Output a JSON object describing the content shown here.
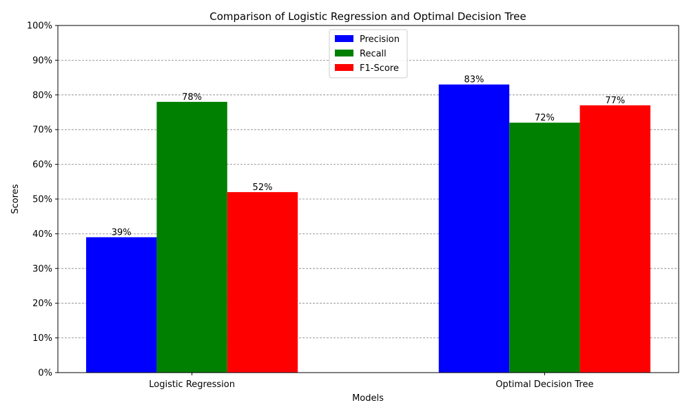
{
  "chart_data": {
    "type": "bar",
    "title": "Comparison of Logistic Regression and Optimal Decision Tree",
    "xlabel": "Models",
    "ylabel": "Scores",
    "categories": [
      "Logistic Regression",
      "Optimal Decision Tree"
    ],
    "series": [
      {
        "name": "Precision",
        "values": [
          0.39,
          0.83
        ],
        "color": "#0000ff"
      },
      {
        "name": "Recall",
        "values": [
          0.78,
          0.72
        ],
        "color": "#008000"
      },
      {
        "name": "F1-Score",
        "values": [
          0.52,
          0.77
        ],
        "color": "#ff0000"
      }
    ],
    "data_labels": [
      [
        "39%",
        "83%"
      ],
      [
        "78%",
        "72%"
      ],
      [
        "52%",
        "77%"
      ]
    ],
    "ylim": [
      0,
      1
    ],
    "yticks": [
      0,
      0.1,
      0.2,
      0.3,
      0.4,
      0.5,
      0.6,
      0.7,
      0.8,
      0.9,
      1.0
    ],
    "ytick_labels": [
      "0%",
      "10%",
      "20%",
      "30%",
      "40%",
      "50%",
      "60%",
      "70%",
      "80%",
      "90%",
      "100%"
    ],
    "grid": "y, dashed",
    "legend_position": "upper center"
  }
}
